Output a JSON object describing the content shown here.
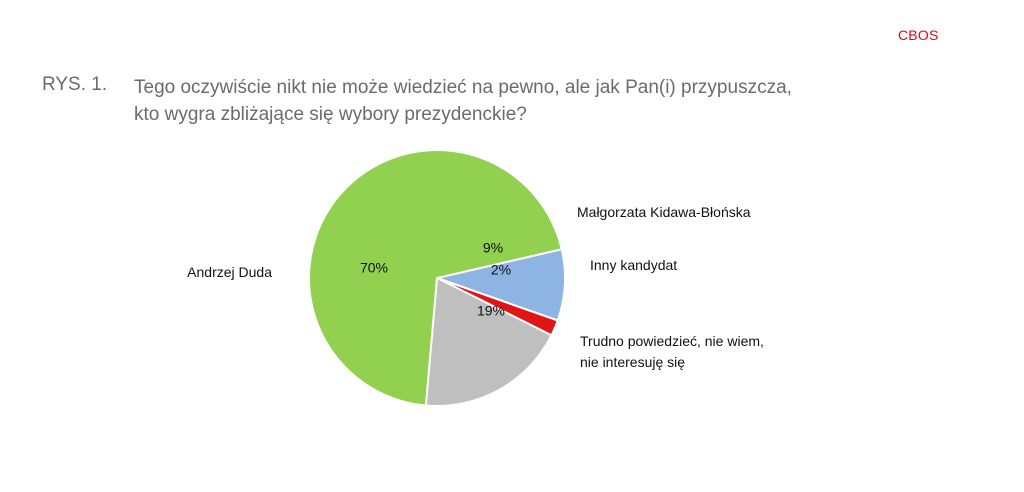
{
  "header": {
    "brand": "CBOS",
    "figure_label": "RYS. 1.",
    "title_line1": "Tego oczywiście nikt nie może wiedzieć na pewno, ale jak Pan(i) przypuszcza,",
    "title_line2": "kto wygra zbliżające się wybory prezydenckie?"
  },
  "chart_data": {
    "type": "pie",
    "slices": [
      {
        "label": [
          "Małgorzata Kidawa-Błońska"
        ],
        "value": 9,
        "value_label": "9%",
        "color": "#8eb4e3"
      },
      {
        "label": [
          "Inny kandydat"
        ],
        "value": 2,
        "value_label": "2%",
        "color": "#e31414"
      },
      {
        "label": [
          "Trudno powiedzieć, nie wiem,",
          "nie interesuję się"
        ],
        "value": 19,
        "value_label": "19%",
        "color": "#bfbfbf"
      },
      {
        "label": [
          "Andrzej Duda"
        ],
        "value": 70,
        "value_label": "70%",
        "color": "#92d050"
      }
    ]
  }
}
